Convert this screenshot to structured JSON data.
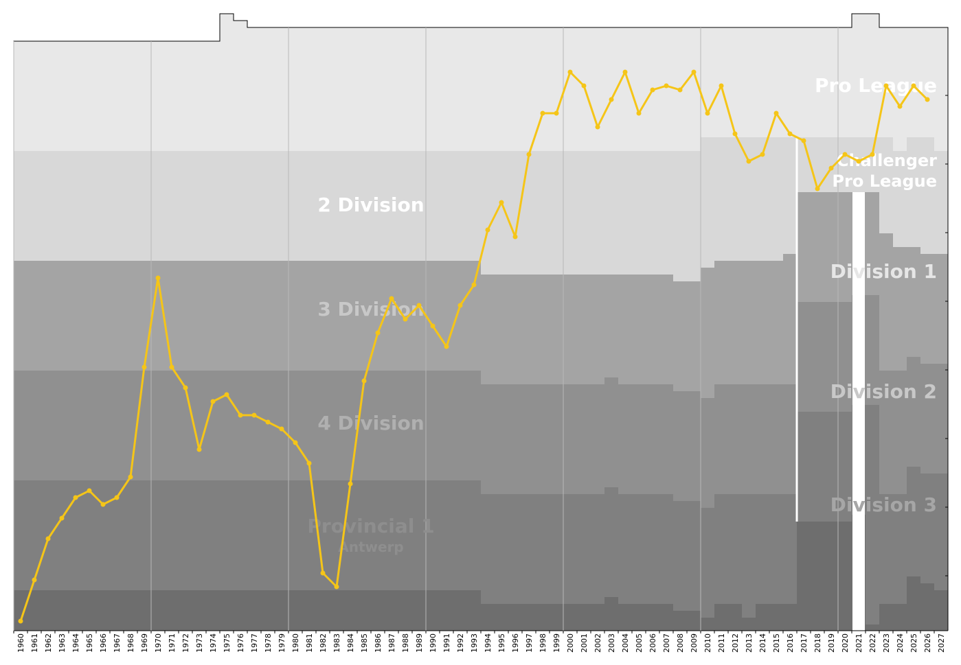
{
  "chart_data": {
    "type": "line",
    "series": [
      {
        "color": "#f5c518",
        "points": [
          [
            "1960",
            100.5
          ],
          [
            "1961",
            97.5
          ],
          [
            "1962",
            94.5
          ],
          [
            "1963",
            93.0
          ],
          [
            "1964",
            91.5
          ],
          [
            "1965",
            91.0
          ],
          [
            "1966",
            92.0
          ],
          [
            "1967",
            91.5
          ],
          [
            "1968",
            90.0
          ],
          [
            "1969",
            82.0
          ],
          [
            "1970",
            75.5
          ],
          [
            "1971",
            82.0
          ],
          [
            "1972",
            83.5
          ],
          [
            "1973",
            88.0
          ],
          [
            "1974",
            84.5
          ],
          [
            "1975",
            84.0
          ],
          [
            "1976",
            85.5
          ],
          [
            "1977",
            85.5
          ],
          [
            "1978",
            86.0
          ],
          [
            "1979",
            86.5
          ],
          [
            "1980",
            87.5
          ],
          [
            "1981",
            89.0
          ],
          [
            "1982",
            97.0
          ],
          [
            "1983",
            98.0
          ],
          [
            "1984",
            90.5
          ],
          [
            "1985",
            83.0
          ],
          [
            "1986",
            79.5
          ],
          [
            "1987",
            77.0
          ],
          [
            "1988",
            78.5
          ],
          [
            "1989",
            77.5
          ],
          [
            "1990",
            79.0
          ],
          [
            "1991",
            80.5
          ],
          [
            "1992",
            77.5
          ],
          [
            "1993",
            76.0
          ],
          [
            "1994",
            72.0
          ],
          [
            "1995",
            70.0
          ],
          [
            "1996",
            72.5
          ],
          [
            "1997",
            66.5
          ],
          [
            "1998",
            63.5
          ],
          [
            "1999",
            63.5
          ],
          [
            "2000",
            60.5
          ],
          [
            "2001",
            61.5
          ],
          [
            "2002",
            64.5
          ],
          [
            "2003",
            62.5
          ],
          [
            "2004",
            60.5
          ],
          [
            "2005",
            63.5
          ],
          [
            "2006",
            61.8
          ],
          [
            "2007",
            61.5
          ],
          [
            "2008",
            61.8
          ],
          [
            "2009",
            60.5
          ],
          [
            "2010",
            63.5
          ],
          [
            "2011",
            61.5
          ],
          [
            "2012",
            65.0
          ],
          [
            "2013",
            67.0
          ],
          [
            "2014",
            66.5
          ],
          [
            "2015",
            63.5
          ],
          [
            "2016",
            65.0
          ],
          [
            "2017",
            65.5
          ],
          [
            "2018",
            69.0
          ],
          [
            "2019",
            67.5
          ],
          [
            "2020",
            66.5
          ],
          [
            "2021",
            67.0
          ],
          [
            "2022",
            66.5
          ],
          [
            "2023",
            61.5
          ],
          [
            "2024",
            63.0
          ],
          [
            "2025",
            61.5
          ],
          [
            "2026",
            62.5
          ]
        ]
      }
    ],
    "x_categories": [
      "1960",
      "1961",
      "1962",
      "1963",
      "1964",
      "1965",
      "1966",
      "1967",
      "1968",
      "1969",
      "1970",
      "1971",
      "1972",
      "1973",
      "1974",
      "1975",
      "1976",
      "1977",
      "1978",
      "1979",
      "1980",
      "1981",
      "1982",
      "1983",
      "1984",
      "1985",
      "1986",
      "1987",
      "1988",
      "1989",
      "1990",
      "1991",
      "1992",
      "1993",
      "1994",
      "1995",
      "1996",
      "1997",
      "1998",
      "1999",
      "2000",
      "2001",
      "2002",
      "2003",
      "2004",
      "2005",
      "2006",
      "2007",
      "2008",
      "2009",
      "2010",
      "2011",
      "2012",
      "2013",
      "2014",
      "2015",
      "2016",
      "2017",
      "2018",
      "2019",
      "2020",
      "2021",
      "2022",
      "2023",
      "2024",
      "2025",
      "2026",
      "2027"
    ],
    "y_axis": {
      "direction": "inverted",
      "range": [
        57,
        101
      ]
    },
    "tier_labels": [
      {
        "lines": [
          "Pro League"
        ],
        "color": "#ffffff",
        "size": "large"
      },
      {
        "lines": [
          "Challenger",
          "Pro League"
        ],
        "color": "#ffffff",
        "size": "medium"
      },
      {
        "lines": [
          "2 Division"
        ],
        "color": "#ffffff",
        "size": "large"
      },
      {
        "lines": [
          "Division 1"
        ],
        "color": "#e6e6e6",
        "size": "large"
      },
      {
        "lines": [
          "3 Division"
        ],
        "color": "#c8c8c8",
        "size": "large"
      },
      {
        "lines": [
          "Division 2"
        ],
        "color": "#c8c8c8",
        "size": "large"
      },
      {
        "lines": [
          "4 Division"
        ],
        "color": "#b0b0b0",
        "size": "large"
      },
      {
        "lines": [
          "Division 3"
        ],
        "color": "#a6a6a6",
        "size": "large"
      },
      {
        "lines": [
          "Provincial 1",
          "Antwerp"
        ],
        "color": "#8e8e8e",
        "size": "large"
      }
    ],
    "tier_colors": [
      "#e8e8e8",
      "#d8d8d8",
      "#a4a4a4",
      "#909090",
      "#808080",
      "#6e6e6e"
    ],
    "grid": true,
    "legend": "none"
  }
}
